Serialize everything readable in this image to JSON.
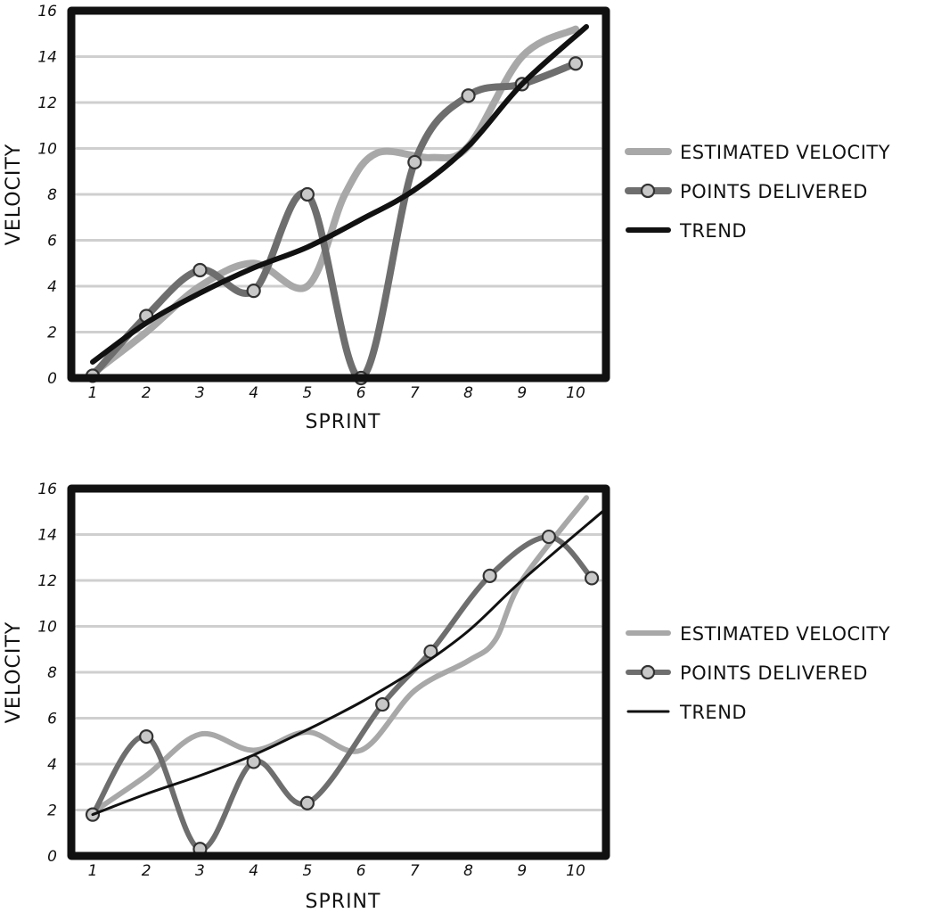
{
  "chart_data": [
    {
      "type": "line",
      "xlabel": "SPRINT",
      "ylabel": "VELOCITY",
      "ylim": [
        0,
        16
      ],
      "x_ticks": [
        "1",
        "2",
        "3",
        "4",
        "5",
        "6",
        "7",
        "8",
        "9",
        "10"
      ],
      "y_ticks": [
        "0",
        "2",
        "4",
        "6",
        "8",
        "10",
        "12",
        "14",
        "16"
      ],
      "grid": "horizontal",
      "legend_position": "right",
      "legend": [
        "ESTIMATED VELOCITY",
        "POINTS DELIVERED",
        "TREND"
      ],
      "series": [
        {
          "name": "ESTIMATED VELOCITY",
          "color": "#a8a8a8",
          "points": [
            [
              1,
              0.2
            ],
            [
              2,
              2.0
            ],
            [
              3,
              4.0
            ],
            [
              4,
              5.0
            ],
            [
              5,
              4.0
            ],
            [
              5.7,
              8.0
            ],
            [
              6.3,
              9.8
            ],
            [
              7.3,
              9.6
            ],
            [
              8,
              10.1
            ],
            [
              9,
              14.0
            ],
            [
              10,
              15.2
            ]
          ]
        },
        {
          "name": "POINTS DELIVERED",
          "color": "#6e6e6e",
          "points": [
            [
              1,
              0.1
            ],
            [
              2,
              2.7
            ],
            [
              3,
              4.7
            ],
            [
              4,
              3.8
            ],
            [
              5,
              8.0
            ],
            [
              6,
              0.0
            ],
            [
              7,
              9.4
            ],
            [
              8,
              12.3
            ],
            [
              9,
              12.8
            ],
            [
              10,
              13.7
            ]
          ]
        },
        {
          "name": "TREND",
          "color": "#111111",
          "points": [
            [
              1,
              0.7
            ],
            [
              2,
              2.4
            ],
            [
              3,
              3.7
            ],
            [
              4,
              4.8
            ],
            [
              5,
              5.7
            ],
            [
              6,
              6.9
            ],
            [
              7,
              8.2
            ],
            [
              8,
              10.1
            ],
            [
              9,
              12.8
            ],
            [
              10.2,
              15.3
            ]
          ]
        }
      ]
    },
    {
      "type": "line",
      "xlabel": "SPRINT",
      "ylabel": "VELOCITY",
      "ylim": [
        0,
        16
      ],
      "x_ticks": [
        "1",
        "2",
        "3",
        "4",
        "5",
        "6",
        "7",
        "8",
        "9",
        "10"
      ],
      "y_ticks": [
        "0",
        "2",
        "4",
        "6",
        "8",
        "10",
        "12",
        "14",
        "16"
      ],
      "grid": "horizontal",
      "legend_position": "right",
      "legend": [
        "ESTIMATED VELOCITY",
        "POINTS DELIVERED",
        "TREND"
      ],
      "series": [
        {
          "name": "ESTIMATED VELOCITY",
          "color": "#a8a8a8",
          "points": [
            [
              1,
              1.9
            ],
            [
              2,
              3.5
            ],
            [
              3,
              5.3
            ],
            [
              4,
              4.6
            ],
            [
              5,
              5.4
            ],
            [
              6,
              4.6
            ],
            [
              7,
              7.2
            ],
            [
              8,
              8.5
            ],
            [
              8.5,
              9.4
            ],
            [
              9,
              12.0
            ],
            [
              10.2,
              15.6
            ]
          ]
        },
        {
          "name": "POINTS DELIVERED",
          "color": "#6e6e6e",
          "points": [
            [
              1,
              1.8
            ],
            [
              2,
              5.2
            ],
            [
              3,
              0.3
            ],
            [
              4,
              4.1
            ],
            [
              5,
              2.3
            ],
            [
              6.4,
              6.6
            ],
            [
              7.3,
              8.9
            ],
            [
              8.4,
              12.2
            ],
            [
              9.5,
              13.9
            ],
            [
              10.3,
              12.1
            ]
          ]
        },
        {
          "name": "TREND",
          "color": "#111111",
          "points": [
            [
              1,
              1.8
            ],
            [
              2,
              2.7
            ],
            [
              3,
              3.5
            ],
            [
              4,
              4.4
            ],
            [
              5,
              5.5
            ],
            [
              6,
              6.7
            ],
            [
              7,
              8.1
            ],
            [
              8,
              9.8
            ],
            [
              9,
              12.0
            ],
            [
              10.5,
              15.0
            ]
          ]
        }
      ]
    }
  ]
}
